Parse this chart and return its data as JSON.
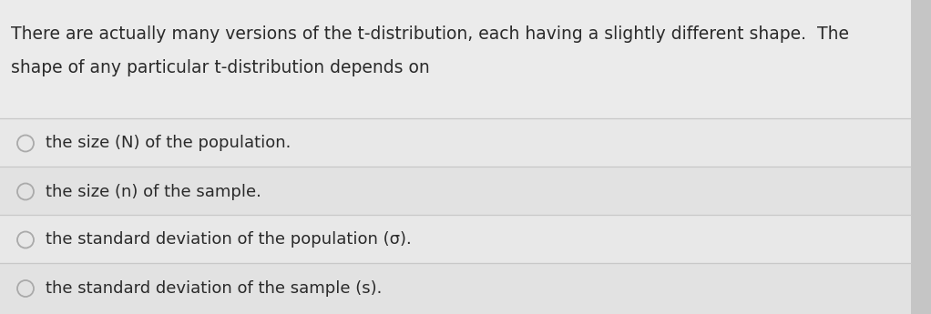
{
  "background_color": "#e8e8e8",
  "header_bg": "#e4e4e4",
  "option_bg_light": "#e8e8e8",
  "option_bg_dark": "#e0e0e0",
  "line_color": "#c8c8c8",
  "right_shadow": "#c0c0c0",
  "header_text_line1": "There are actually many versions of the t-distribution, each having a slightly different shape.  The",
  "header_text_line2": "shape of any particular t-distribution depends on",
  "options": [
    "the size (N) of the population.",
    "the size (n) of the sample.",
    "the standard deviation of the population (σ).",
    "the standard deviation of the sample (s)."
  ],
  "text_color": "#2a2a2a",
  "circle_edge_color": "#aaaaaa",
  "font_size_header": 13.5,
  "font_size_options": 13.0,
  "fig_width": 10.22,
  "fig_height": 3.45,
  "dpi": 100
}
